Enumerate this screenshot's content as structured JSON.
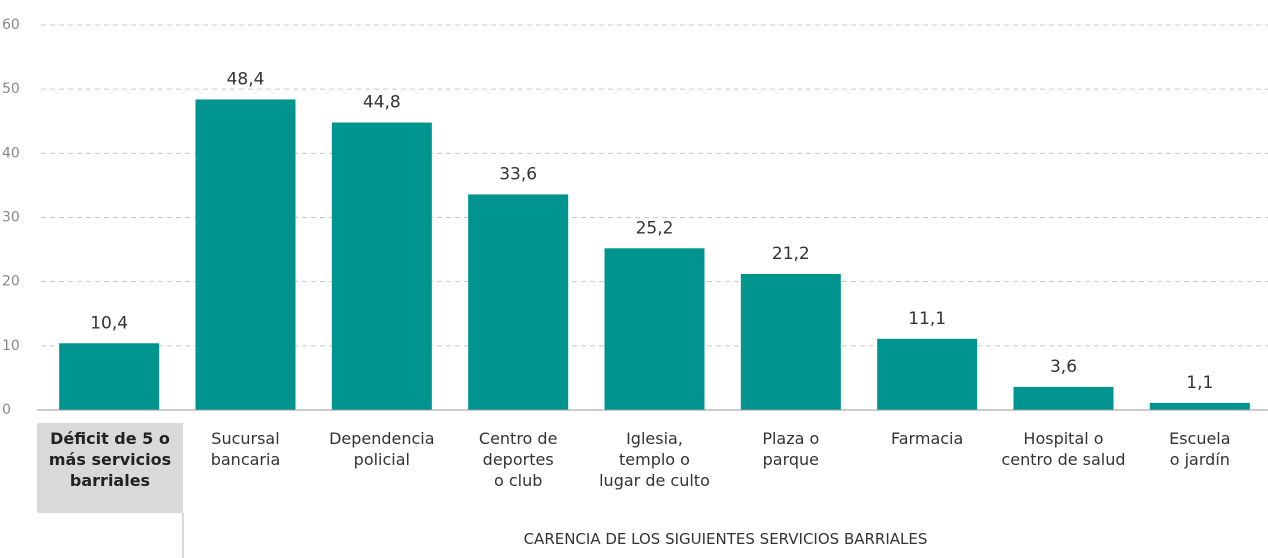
{
  "chart_data": {
    "type": "bar",
    "categories": [
      "Déficit de 5 o\nmás servicios\nbarriales",
      "Sucursal\nbancaria",
      "Dependencia\npolicial",
      "Centro de\ndeportes\no club",
      "Iglesia,\ntemplo o\nlugar de culto",
      "Plaza o\nparque",
      "Farmacia",
      "Hospital o\ncentro de salud",
      "Escuela\no jardín"
    ],
    "values": [
      10.4,
      48.4,
      44.8,
      33.6,
      25.2,
      21.2,
      11.1,
      3.6,
      1.1
    ],
    "value_labels": [
      "10,4",
      "48,4",
      "44,8",
      "33,6",
      "25,2",
      "21,2",
      "11,1",
      "3,6",
      "1,1"
    ],
    "color": "#00948f",
    "ylim": [
      0,
      60
    ],
    "yticks": [
      0,
      10,
      20,
      30,
      40,
      50,
      60
    ],
    "grid": true,
    "xlabel": "CARENCIA DE LOS SIGUIENTES SERVICIOS BARRIALES"
  }
}
